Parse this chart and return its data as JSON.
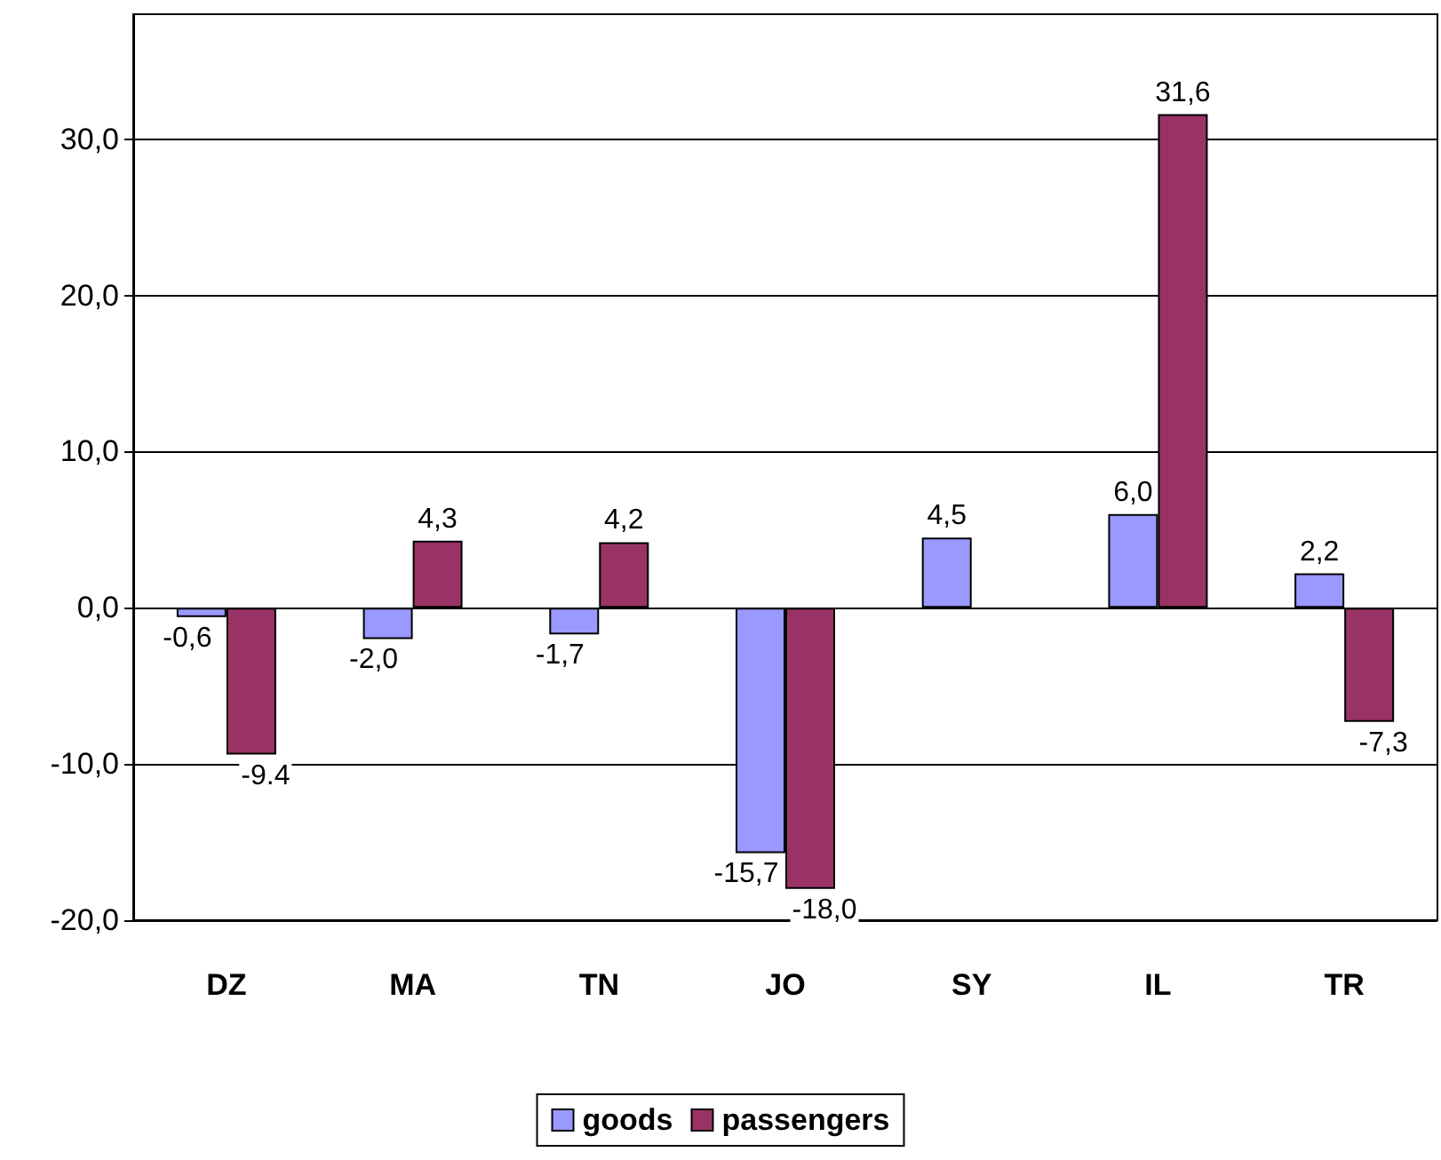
{
  "chart_data": {
    "type": "bar",
    "categories": [
      "DZ",
      "MA",
      "TN",
      "JO",
      "SY",
      "IL",
      "TR"
    ],
    "series": [
      {
        "name": "goods",
        "color": "#9999ff",
        "values": [
          -0.6,
          -2.0,
          -1.7,
          -15.7,
          4.5,
          6.0,
          2.2
        ],
        "value_labels": [
          "-0,6",
          "-2,0",
          "-1,7",
          "-15,7",
          "4,5",
          "6,0",
          "2,2"
        ]
      },
      {
        "name": "passengers",
        "color": "#993366",
        "values": [
          -9.4,
          4.3,
          4.2,
          -18.0,
          null,
          31.6,
          -7.3
        ],
        "value_labels": [
          "-9.4",
          "4,3",
          "4,2",
          "-18,0",
          null,
          "31,6",
          "-7,3"
        ]
      }
    ],
    "ylim": [
      -20,
      38
    ],
    "yticks": [
      {
        "value": -20,
        "label": "-20,0"
      },
      {
        "value": -10,
        "label": "-10,0"
      },
      {
        "value": 0,
        "label": "0,0"
      },
      {
        "value": 10,
        "label": "10,0"
      },
      {
        "value": 20,
        "label": "20,0"
      },
      {
        "value": 30,
        "label": "30,0"
      }
    ],
    "grid": "y",
    "legend": "bottom"
  }
}
